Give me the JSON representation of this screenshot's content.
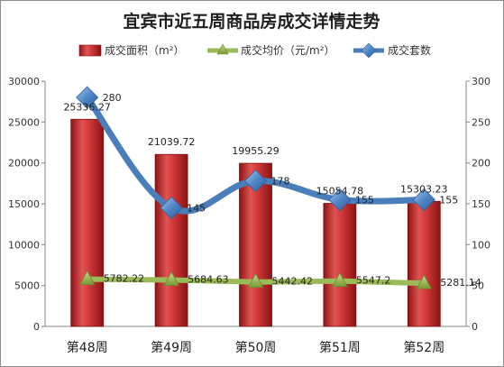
{
  "chart_data": {
    "type": "bar",
    "title": "宜宾市近五周商品房成交详情走势",
    "categories": [
      "第48周",
      "第49周",
      "第50周",
      "第51周",
      "第52周"
    ],
    "series": [
      {
        "name": "成交面积（m²）",
        "type": "bar",
        "axis": "left",
        "color": "#c0282a",
        "values": [
          25336.27,
          21039.72,
          19955.29,
          15054.78,
          15303.23
        ],
        "labels": [
          "25336.27",
          "21039.72",
          "19955.29",
          "15054.78",
          "15303.23"
        ]
      },
      {
        "name": "成交均价（元/m²）",
        "type": "line",
        "axis": "left",
        "color": "#9bbb59",
        "marker": "triangle",
        "values": [
          5782.22,
          5684.63,
          5442.42,
          5547.2,
          5281.14
        ],
        "labels": [
          "5782.22",
          "5684.63",
          "5442.42",
          "5547.2",
          "5281.14"
        ]
      },
      {
        "name": "成交套数",
        "type": "line",
        "axis": "right",
        "color": "#4a7ebb",
        "marker": "diamond",
        "values": [
          280,
          145,
          178,
          155,
          155
        ],
        "labels": [
          "280",
          "145",
          "178",
          "155",
          "155"
        ]
      }
    ],
    "y_left": {
      "min": 0,
      "max": 30000,
      "ticks": [
        "0",
        "5000",
        "10000",
        "15000",
        "20000",
        "25000",
        "30000"
      ]
    },
    "y_right": {
      "min": 0,
      "max": 300,
      "ticks": [
        "0",
        "50",
        "100",
        "150",
        "200",
        "250",
        "300"
      ]
    },
    "grid": false,
    "legend_position": "top"
  }
}
